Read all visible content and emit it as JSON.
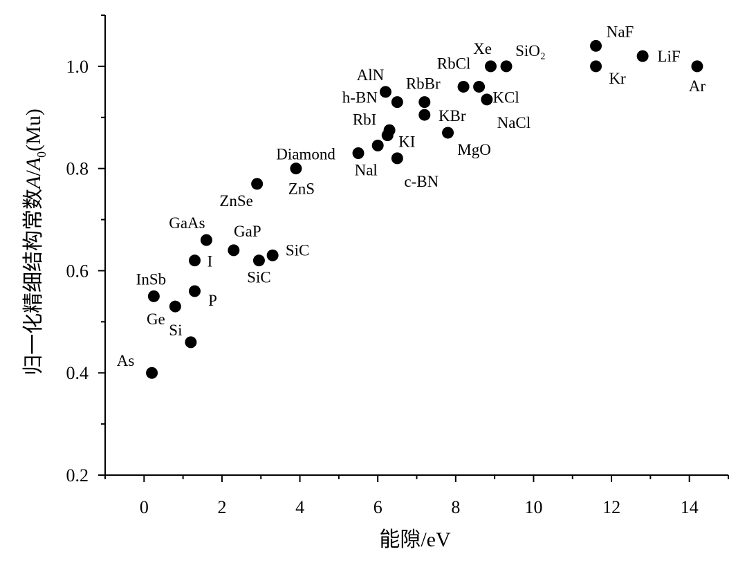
{
  "chart_data": {
    "type": "scatter",
    "xlabel": "能隙/eV",
    "ylabel_prefix": "归一化精细结构常数",
    "ylabel_A": "A",
    "ylabel_slash": "/",
    "ylabel_A0": "A",
    "ylabel_A0_sub": "0",
    "ylabel_unit": "(Mu)",
    "xlim": [
      -1,
      15
    ],
    "ylim": [
      0.2,
      1.1
    ],
    "x_ticks": [
      0,
      2,
      4,
      6,
      8,
      10,
      12,
      14
    ],
    "x_tick_labels": [
      "0",
      "2",
      "4",
      "6",
      "8",
      "10",
      "12",
      "14"
    ],
    "y_ticks": [
      0.2,
      0.4,
      0.6,
      0.8,
      1.0
    ],
    "y_tick_labels": [
      "0.2",
      "0.4",
      "0.6",
      "0.8",
      "1.0"
    ],
    "grid": false,
    "legend": "none",
    "marker_color": "#000000",
    "points": [
      {
        "label": "As",
        "x": 0.2,
        "y": 0.4
      },
      {
        "label": "Si",
        "x": 1.2,
        "y": 0.46
      },
      {
        "label": "Ge",
        "x": 0.8,
        "y": 0.53
      },
      {
        "label": "InSb",
        "x": 0.25,
        "y": 0.55
      },
      {
        "label": "P",
        "x": 1.3,
        "y": 0.56
      },
      {
        "label": "I",
        "x": 1.3,
        "y": 0.62
      },
      {
        "label": "GaAs",
        "x": 1.6,
        "y": 0.66
      },
      {
        "label": "GaP",
        "x": 2.3,
        "y": 0.64
      },
      {
        "label": "SiC",
        "x": 2.95,
        "y": 0.62
      },
      {
        "label": "SiC",
        "x": 3.3,
        "y": 0.63
      },
      {
        "label": "ZnSe",
        "x": 2.9,
        "y": 0.77
      },
      {
        "label": "ZnS",
        "x": 3.9,
        "y": 0.8
      },
      {
        "label": "Diamond",
        "x": 5.5,
        "y": 0.83
      },
      {
        "label": "Nal",
        "x": 6.0,
        "y": 0.845
      },
      {
        "label": "c-BN",
        "x": 6.5,
        "y": 0.82
      },
      {
        "label": "KI",
        "x": 6.25,
        "y": 0.865
      },
      {
        "label": "RbI",
        "x": 6.3,
        "y": 0.875
      },
      {
        "label": "h-BN",
        "x": 6.5,
        "y": 0.93
      },
      {
        "label": "AlN",
        "x": 6.2,
        "y": 0.95
      },
      {
        "label": "RbBr",
        "x": 7.2,
        "y": 0.93
      },
      {
        "label": "KBr",
        "x": 7.2,
        "y": 0.905
      },
      {
        "label": "MgO",
        "x": 7.8,
        "y": 0.87
      },
      {
        "label": "RbCl",
        "x": 8.2,
        "y": 0.96
      },
      {
        "label": "KCl",
        "x": 8.6,
        "y": 0.96
      },
      {
        "label": "NaCl",
        "x": 8.8,
        "y": 0.935
      },
      {
        "label": "Xe",
        "x": 8.9,
        "y": 1.0
      },
      {
        "label": "SiO₂",
        "x": 9.3,
        "y": 1.0
      },
      {
        "label": "NaF",
        "x": 11.6,
        "y": 1.04
      },
      {
        "label": "Kr",
        "x": 11.6,
        "y": 1.0
      },
      {
        "label": "LiF",
        "x": 12.8,
        "y": 1.02
      },
      {
        "label": "Ar",
        "x": 14.2,
        "y": 1.0
      }
    ]
  }
}
